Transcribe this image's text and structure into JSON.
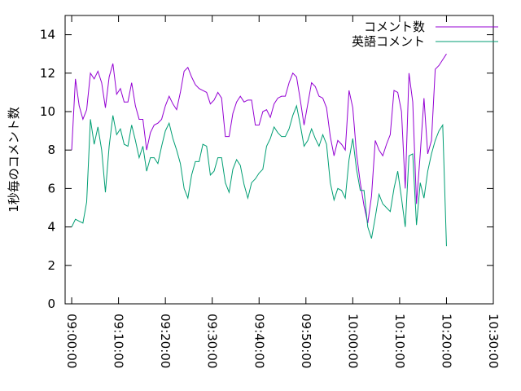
{
  "chart_data": {
    "type": "line",
    "y_label": "1秒毎のコメント数",
    "x": [
      "09:00:00",
      "09:00:48",
      "09:01:36",
      "09:02:24",
      "09:03:12",
      "09:04:00",
      "09:04:48",
      "09:05:36",
      "09:06:24",
      "09:07:12",
      "09:08:00",
      "09:08:48",
      "09:09:36",
      "09:10:24",
      "09:11:12",
      "09:12:00",
      "09:12:48",
      "09:13:36",
      "09:14:24",
      "09:15:12",
      "09:16:00",
      "09:16:48",
      "09:17:36",
      "09:18:24",
      "09:19:12",
      "09:20:00",
      "09:20:48",
      "09:21:36",
      "09:22:24",
      "09:23:12",
      "09:24:00",
      "09:24:48",
      "09:25:36",
      "09:26:24",
      "09:27:12",
      "09:28:00",
      "09:28:48",
      "09:29:36",
      "09:30:24",
      "09:31:12",
      "09:32:00",
      "09:32:48",
      "09:33:36",
      "09:34:24",
      "09:35:12",
      "09:36:00",
      "09:36:48",
      "09:37:36",
      "09:38:24",
      "09:39:12",
      "09:40:00",
      "09:40:48",
      "09:41:36",
      "09:42:24",
      "09:43:12",
      "09:44:00",
      "09:44:48",
      "09:45:36",
      "09:46:24",
      "09:47:12",
      "09:48:00",
      "09:48:48",
      "09:49:36",
      "09:50:24",
      "09:51:12",
      "09:52:00",
      "09:52:48",
      "09:53:36",
      "09:54:24",
      "09:55:12",
      "09:56:00",
      "09:56:48",
      "09:57:36",
      "09:58:24",
      "09:59:12",
      "10:00:00",
      "10:00:48",
      "10:01:36",
      "10:02:24",
      "10:03:12",
      "10:04:00",
      "10:04:48",
      "10:05:36",
      "10:06:24",
      "10:07:12",
      "10:08:00",
      "10:08:48",
      "10:09:36",
      "10:10:24",
      "10:11:12",
      "10:12:00",
      "10:12:48",
      "10:13:36",
      "10:14:24",
      "10:15:12",
      "10:16:00",
      "10:16:48",
      "10:17:36",
      "10:18:24",
      "10:19:12",
      "10:20:00"
    ],
    "series": [
      {
        "name": "コメント数",
        "color": "#9400d3",
        "values": [
          8.0,
          11.7,
          10.3,
          9.6,
          10.1,
          12.0,
          11.7,
          12.1,
          11.5,
          10.2,
          11.8,
          12.5,
          10.9,
          11.2,
          10.5,
          10.5,
          11.5,
          10.3,
          9.6,
          9.6,
          8.0,
          8.9,
          9.3,
          9.4,
          9.6,
          10.3,
          10.8,
          10.4,
          10.1,
          11.0,
          12.1,
          12.3,
          11.8,
          11.4,
          11.2,
          11.1,
          11.0,
          10.4,
          10.6,
          11.0,
          10.7,
          8.7,
          8.7,
          9.9,
          10.5,
          10.8,
          10.5,
          10.6,
          10.6,
          9.3,
          9.3,
          10.0,
          10.1,
          9.7,
          10.4,
          10.7,
          10.8,
          10.8,
          11.5,
          12.0,
          11.8,
          10.6,
          9.3,
          10.4,
          11.5,
          11.3,
          10.8,
          10.7,
          10.2,
          8.7,
          7.7,
          8.5,
          8.3,
          8.0,
          11.1,
          10.2,
          7.8,
          6.3,
          5.1,
          4.2,
          5.6,
          8.5,
          8.0,
          7.7,
          8.3,
          8.8,
          11.1,
          11.0,
          10.0,
          6.0,
          12.0,
          10.5,
          5.2,
          7.8,
          10.7,
          7.8,
          8.5,
          12.2,
          12.4,
          12.7,
          13.0
        ]
      },
      {
        "name": "英語コメント",
        "color": "#009e73",
        "values": [
          4.0,
          4.4,
          4.3,
          4.2,
          5.3,
          9.6,
          8.3,
          9.2,
          8.0,
          5.8,
          8.2,
          9.8,
          8.8,
          9.1,
          8.3,
          8.2,
          9.3,
          8.5,
          7.6,
          8.2,
          6.9,
          7.6,
          7.6,
          7.3,
          8.2,
          9.0,
          9.4,
          8.6,
          8.0,
          7.3,
          6.0,
          5.5,
          6.7,
          7.4,
          7.4,
          8.3,
          8.2,
          6.7,
          6.9,
          7.6,
          7.6,
          6.3,
          5.8,
          7.0,
          7.5,
          7.2,
          6.2,
          5.5,
          6.3,
          6.5,
          6.8,
          7.0,
          8.2,
          8.6,
          9.2,
          8.9,
          8.7,
          8.7,
          9.1,
          9.8,
          10.3,
          9.3,
          8.2,
          8.5,
          9.1,
          8.6,
          8.2,
          8.8,
          8.3,
          6.3,
          5.4,
          6.0,
          5.9,
          5.5,
          7.5,
          8.6,
          7.0,
          5.9,
          5.9,
          4.0,
          3.4,
          4.5,
          5.7,
          5.2,
          5.0,
          4.8,
          6.0,
          6.9,
          5.5,
          4.0,
          7.7,
          7.8,
          4.1,
          6.3,
          5.5,
          6.9,
          7.8,
          8.5,
          9.0,
          9.3,
          3.0
        ]
      }
    ],
    "xlim": [
      "08:58:36",
      "10:30:00"
    ],
    "xticks": [
      "09:00:00",
      "09:10:00",
      "09:20:00",
      "09:30:00",
      "09:40:00",
      "09:50:00",
      "10:00:00",
      "10:10:00",
      "10:20:00",
      "10:30:00"
    ],
    "ylim": [
      0,
      15
    ],
    "yticks": [
      0,
      2,
      4,
      6,
      8,
      10,
      12,
      14
    ],
    "legend": "top-right"
  }
}
